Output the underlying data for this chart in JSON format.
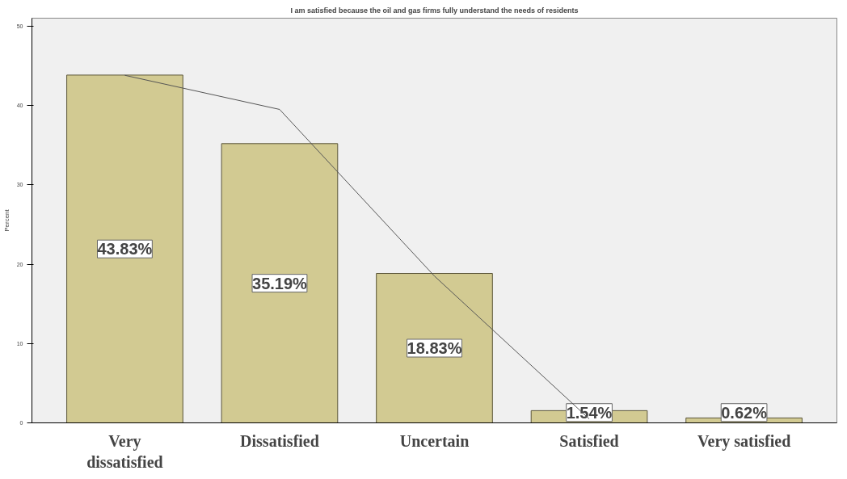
{
  "chart_data": {
    "type": "bar",
    "title": "I am satisfied because the oil and gas firms fully understand the needs of residents",
    "ylabel": "Percent",
    "categories": [
      "Very dissatisfied",
      "Dissatisfied",
      "Uncertain",
      "Satisfied",
      "Very satisfied"
    ],
    "series": [
      {
        "color": "#d2ca92",
        "values": [
          43.83,
          35.19,
          18.83,
          1.54,
          0.62
        ],
        "value_labels": [
          "43.83%",
          "35.19%",
          "18.83%",
          "1.54%",
          "0.62%"
        ]
      },
      {
        "type": "line",
        "color": "#555555",
        "values": [
          43.8,
          39.5,
          18.5,
          0.5,
          null
        ]
      }
    ],
    "ylim": [
      0,
      51
    ],
    "yticks": [
      0,
      10,
      20,
      30,
      40,
      50
    ],
    "grid": false
  }
}
